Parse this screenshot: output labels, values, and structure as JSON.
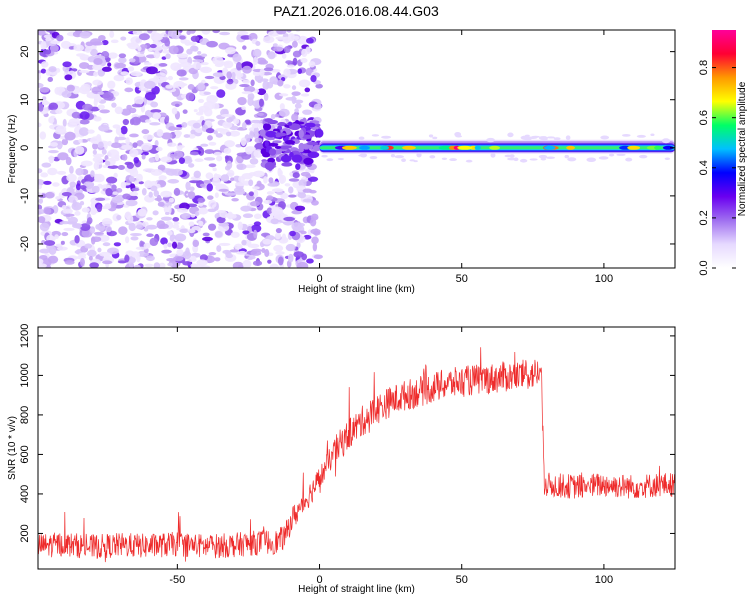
{
  "title": "PAZ1.2026.016.08.44.G03",
  "chart_data": [
    {
      "type": "heatmap",
      "title": "PAZ1.2026.016.08.44.G03",
      "xlabel": "Height of straight line (km)",
      "ylabel": "Frequency (Hz)",
      "xlim": [
        -99,
        125
      ],
      "ylim": [
        -25,
        24.5
      ],
      "xticks": [
        -50,
        0,
        50,
        100
      ],
      "yticks": [
        -20,
        -10,
        0,
        10,
        20
      ],
      "colorbar": {
        "label": "Normalized spectral amplitude",
        "range": [
          0,
          0.95
        ],
        "ticks": [
          0.0,
          0.2,
          0.4,
          0.6,
          0.8
        ],
        "tick_labels": [
          "0.0",
          "0.2",
          "0.4",
          "0.6",
          "0.8"
        ],
        "colormap": [
          "#ffffff",
          "#e6d9ff",
          "#a070f0",
          "#6a00f0",
          "#0000ff",
          "#00c0ff",
          "#00ff66",
          "#ffff00",
          "#ff9900",
          "#ff0033",
          "#ff0099"
        ]
      },
      "regions": [
        {
          "name": "scattered noise",
          "x_range": [
            -99,
            0
          ],
          "freq_range": [
            -25,
            24.5
          ],
          "amplitude_range": [
            0.0,
            0.1
          ]
        },
        {
          "name": "noise cluster",
          "x_range": [
            -20,
            0
          ],
          "freq_range": [
            -4,
            6
          ],
          "amplitude_range": [
            0.05,
            0.15
          ]
        },
        {
          "name": "carrier line",
          "x_range": [
            0,
            125
          ],
          "freq": 0.0,
          "amplitude_range": [
            0.3,
            0.95
          ]
        }
      ]
    },
    {
      "type": "line",
      "xlabel": "Height of straight line (km)",
      "ylabel": "SNR (10 * v/v)",
      "xlim": [
        -99,
        125
      ],
      "ylim": [
        20,
        1245
      ],
      "xticks": [
        -50,
        0,
        50,
        100
      ],
      "yticks": [
        200,
        400,
        600,
        800,
        1000,
        1200
      ],
      "color": "#ee2a2a",
      "series": [
        {
          "name": "SNR",
          "x": [
            -99,
            -90,
            -80,
            -70,
            -60,
            -50,
            -40,
            -30,
            -20,
            -15,
            -12,
            -10,
            -5,
            0,
            5,
            10,
            15,
            20,
            25,
            30,
            35,
            40,
            45,
            50,
            55,
            60,
            65,
            70,
            75,
            78,
            79,
            80,
            90,
            100,
            110,
            120,
            125
          ],
          "values": [
            130,
            140,
            125,
            135,
            130,
            140,
            128,
            135,
            150,
            150,
            180,
            260,
            360,
            470,
            600,
            690,
            760,
            820,
            860,
            890,
            910,
            930,
            950,
            960,
            970,
            975,
            985,
            990,
            1000,
            1010,
            430,
            440,
            430,
            440,
            430,
            440,
            440
          ],
          "noise_amplitude": 90
        }
      ]
    }
  ]
}
